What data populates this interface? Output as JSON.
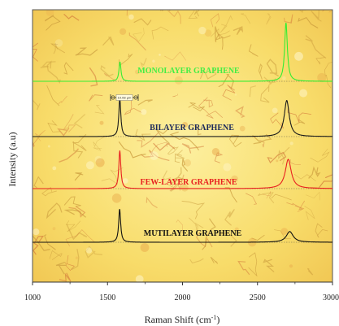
{
  "chart_data": {
    "type": "line",
    "xlabel": "Raman Shift (cm",
    "xlabel_sup": "-1",
    "xlabel_close": ")",
    "ylabel": "Intensity (a.u)",
    "xlim": [
      1000,
      3000
    ],
    "xticks": [
      1000,
      1500,
      2000,
      2500,
      3000
    ],
    "scale_bar_label": "10.08 µm",
    "series": [
      {
        "name": "MONOLAYER GRAPHENE",
        "color": "#33ee33",
        "g_peak": 1583,
        "g_height": 1.0,
        "g_width": 16,
        "d2_peak": 2690,
        "d2_height": 3.0,
        "d2_width": 22
      },
      {
        "name": "BILAYER GRAPHENE",
        "color": "#1a1a1a",
        "g_peak": 1582,
        "g_height": 1.95,
        "g_width": 16,
        "d2_peak": 2695,
        "d2_height": 1.85,
        "d2_width": 40
      },
      {
        "name": "FEW-LAYER GRAPHENE",
        "color": "#e82020",
        "g_peak": 1582,
        "g_height": 1.95,
        "g_width": 16,
        "d2_peak": 2705,
        "d2_height": 1.5,
        "d2_width": 48
      },
      {
        "name": "MUTILAYER GRAPHENE",
        "color": "#111111",
        "g_peak": 1581,
        "g_height": 1.7,
        "g_width": 16,
        "d2_peak": 2715,
        "d2_height": 0.55,
        "d2_width": 55
      }
    ]
  }
}
